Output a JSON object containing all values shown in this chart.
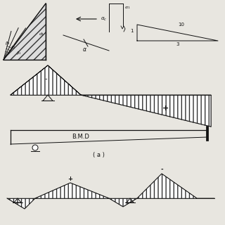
{
  "bg_color": "#e8e6e0",
  "line_color": "#111111",
  "hatch_color": "#333333",
  "bmd_label": "B.M.D",
  "caption": "( a )"
}
